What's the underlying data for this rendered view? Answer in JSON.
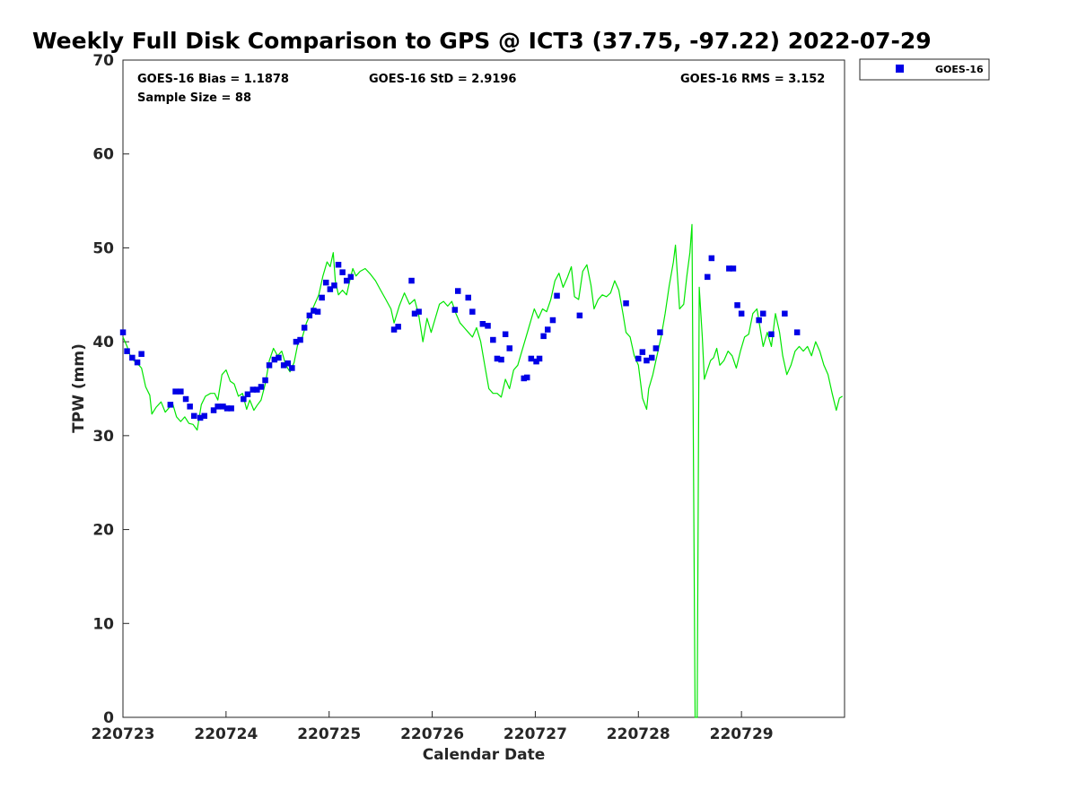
{
  "chart_data": {
    "type": "scatter",
    "title": "Weekly Full Disk Comparison to GPS @ ICT3 (37.75, -97.22) 2022-07-29",
    "xlabel": "Calendar Date",
    "ylabel": "TPW (mm)",
    "xlim": [
      0,
      7
    ],
    "ylim": [
      0,
      70
    ],
    "x_ticks": [
      {
        "value": 0,
        "label": "220723"
      },
      {
        "value": 1,
        "label": "220724"
      },
      {
        "value": 2,
        "label": "220725"
      },
      {
        "value": 3,
        "label": "220726"
      },
      {
        "value": 4,
        "label": "220727"
      },
      {
        "value": 5,
        "label": "220728"
      },
      {
        "value": 6,
        "label": "220729"
      }
    ],
    "y_ticks": [
      0,
      10,
      20,
      30,
      40,
      50,
      60,
      70
    ],
    "grid": false,
    "legend": {
      "position": "top-right",
      "entries": [
        "GOES-16"
      ]
    },
    "stats": {
      "bias": "GOES-16 Bias = 1.1878",
      "std": "GOES-16 StD = 2.9196",
      "rms": "GOES-16 RMS = 3.152",
      "sample": "Sample Size = 88"
    },
    "series": [
      {
        "name": "GOES-16",
        "kind": "scatter",
        "color": "#0000e6",
        "points": [
          [
            0.0,
            41.0
          ],
          [
            0.04,
            39.0
          ],
          [
            0.09,
            38.3
          ],
          [
            0.14,
            37.8
          ],
          [
            0.18,
            38.7
          ],
          [
            0.46,
            33.3
          ],
          [
            0.51,
            34.7
          ],
          [
            0.56,
            34.7
          ],
          [
            0.61,
            33.9
          ],
          [
            0.65,
            33.1
          ],
          [
            0.69,
            32.1
          ],
          [
            0.75,
            31.9
          ],
          [
            0.79,
            32.1
          ],
          [
            0.88,
            32.7
          ],
          [
            0.92,
            33.1
          ],
          [
            0.97,
            33.1
          ],
          [
            1.01,
            32.9
          ],
          [
            1.05,
            32.9
          ],
          [
            1.17,
            33.9
          ],
          [
            1.21,
            34.4
          ],
          [
            1.26,
            34.9
          ],
          [
            1.3,
            34.9
          ],
          [
            1.34,
            35.2
          ],
          [
            1.38,
            35.9
          ],
          [
            1.42,
            37.5
          ],
          [
            1.47,
            38.1
          ],
          [
            1.51,
            38.3
          ],
          [
            1.56,
            37.5
          ],
          [
            1.6,
            37.7
          ],
          [
            1.64,
            37.2
          ],
          [
            1.68,
            40.0
          ],
          [
            1.72,
            40.2
          ],
          [
            1.76,
            41.5
          ],
          [
            1.81,
            42.8
          ],
          [
            1.85,
            43.3
          ],
          [
            1.89,
            43.2
          ],
          [
            1.93,
            44.7
          ],
          [
            1.97,
            46.3
          ],
          [
            2.01,
            45.6
          ],
          [
            2.05,
            46.0
          ],
          [
            2.09,
            48.2
          ],
          [
            2.13,
            47.4
          ],
          [
            2.17,
            46.5
          ],
          [
            2.21,
            46.9
          ],
          [
            2.63,
            41.3
          ],
          [
            2.67,
            41.6
          ],
          [
            2.8,
            46.5
          ],
          [
            2.83,
            43.0
          ],
          [
            2.87,
            43.2
          ],
          [
            3.22,
            43.4
          ],
          [
            3.25,
            45.4
          ],
          [
            3.35,
            44.7
          ],
          [
            3.39,
            43.2
          ],
          [
            3.49,
            41.9
          ],
          [
            3.54,
            41.7
          ],
          [
            3.59,
            40.2
          ],
          [
            3.63,
            38.2
          ],
          [
            3.67,
            38.1
          ],
          [
            3.71,
            40.8
          ],
          [
            3.75,
            39.3
          ],
          [
            3.89,
            36.1
          ],
          [
            3.92,
            36.2
          ],
          [
            3.96,
            38.2
          ],
          [
            4.01,
            37.9
          ],
          [
            4.04,
            38.2
          ],
          [
            4.08,
            40.6
          ],
          [
            4.12,
            41.3
          ],
          [
            4.17,
            42.3
          ],
          [
            4.21,
            44.9
          ],
          [
            4.43,
            42.8
          ],
          [
            4.88,
            44.1
          ],
          [
            5.0,
            38.2
          ],
          [
            5.04,
            38.9
          ],
          [
            5.08,
            38.0
          ],
          [
            5.13,
            38.3
          ],
          [
            5.17,
            39.3
          ],
          [
            5.21,
            41.0
          ],
          [
            5.67,
            46.9
          ],
          [
            5.71,
            48.9
          ],
          [
            5.88,
            47.8
          ],
          [
            5.92,
            47.8
          ],
          [
            5.96,
            43.9
          ],
          [
            6.0,
            43.0
          ],
          [
            6.17,
            42.3
          ],
          [
            6.21,
            43.0
          ],
          [
            6.29,
            40.8
          ],
          [
            6.42,
            43.0
          ],
          [
            6.54,
            41.0
          ]
        ]
      },
      {
        "name": "",
        "kind": "line",
        "color": "#00e600",
        "points": [
          [
            0.0,
            40.5
          ],
          [
            0.04,
            39.5
          ],
          [
            0.08,
            38.2
          ],
          [
            0.13,
            37.8
          ],
          [
            0.18,
            37.2
          ],
          [
            0.22,
            35.2
          ],
          [
            0.26,
            34.3
          ],
          [
            0.28,
            32.3
          ],
          [
            0.32,
            33.0
          ],
          [
            0.37,
            33.6
          ],
          [
            0.41,
            32.5
          ],
          [
            0.45,
            33.0
          ],
          [
            0.48,
            33.5
          ],
          [
            0.52,
            32.0
          ],
          [
            0.56,
            31.5
          ],
          [
            0.6,
            32.0
          ],
          [
            0.64,
            31.3
          ],
          [
            0.68,
            31.2
          ],
          [
            0.72,
            30.6
          ],
          [
            0.76,
            33.3
          ],
          [
            0.8,
            34.2
          ],
          [
            0.85,
            34.5
          ],
          [
            0.89,
            34.5
          ],
          [
            0.92,
            33.8
          ],
          [
            0.96,
            36.5
          ],
          [
            1.0,
            37.0
          ],
          [
            1.04,
            35.8
          ],
          [
            1.08,
            35.5
          ],
          [
            1.12,
            34.2
          ],
          [
            1.16,
            34.5
          ],
          [
            1.2,
            32.8
          ],
          [
            1.23,
            33.8
          ],
          [
            1.27,
            32.7
          ],
          [
            1.3,
            33.2
          ],
          [
            1.34,
            33.8
          ],
          [
            1.38,
            35.5
          ],
          [
            1.42,
            38.0
          ],
          [
            1.46,
            39.3
          ],
          [
            1.5,
            38.5
          ],
          [
            1.54,
            39.0
          ],
          [
            1.58,
            37.5
          ],
          [
            1.62,
            36.8
          ],
          [
            1.66,
            37.8
          ],
          [
            1.7,
            40.0
          ],
          [
            1.74,
            40.5
          ],
          [
            1.78,
            42.0
          ],
          [
            1.82,
            43.0
          ],
          [
            1.86,
            44.0
          ],
          [
            1.9,
            45.0
          ],
          [
            1.94,
            47.0
          ],
          [
            1.98,
            48.5
          ],
          [
            2.01,
            48.0
          ],
          [
            2.04,
            49.5
          ],
          [
            2.06,
            46.5
          ],
          [
            2.09,
            45.0
          ],
          [
            2.13,
            45.5
          ],
          [
            2.17,
            45.0
          ],
          [
            2.2,
            46.5
          ],
          [
            2.23,
            47.8
          ],
          [
            2.26,
            47.0
          ],
          [
            2.3,
            47.5
          ],
          [
            2.35,
            47.8
          ],
          [
            2.4,
            47.2
          ],
          [
            2.45,
            46.5
          ],
          [
            2.5,
            45.5
          ],
          [
            2.55,
            44.5
          ],
          [
            2.6,
            43.5
          ],
          [
            2.63,
            42.0
          ],
          [
            2.68,
            43.8
          ],
          [
            2.73,
            45.2
          ],
          [
            2.78,
            44.0
          ],
          [
            2.83,
            44.5
          ],
          [
            2.87,
            42.8
          ],
          [
            2.91,
            40.0
          ],
          [
            2.95,
            42.5
          ],
          [
            2.99,
            41.0
          ],
          [
            3.03,
            42.5
          ],
          [
            3.07,
            44.0
          ],
          [
            3.11,
            44.3
          ],
          [
            3.15,
            43.8
          ],
          [
            3.19,
            44.3
          ],
          [
            3.23,
            43.0
          ],
          [
            3.27,
            42.0
          ],
          [
            3.31,
            41.5
          ],
          [
            3.35,
            41.0
          ],
          [
            3.39,
            40.5
          ],
          [
            3.43,
            41.5
          ],
          [
            3.47,
            40.0
          ],
          [
            3.51,
            37.5
          ],
          [
            3.55,
            35.0
          ],
          [
            3.59,
            34.5
          ],
          [
            3.63,
            34.5
          ],
          [
            3.67,
            34.1
          ],
          [
            3.71,
            36.0
          ],
          [
            3.75,
            35.0
          ],
          [
            3.79,
            37.0
          ],
          [
            3.83,
            37.5
          ],
          [
            3.87,
            39.0
          ],
          [
            3.91,
            40.5
          ],
          [
            3.95,
            42.0
          ],
          [
            3.99,
            43.5
          ],
          [
            4.03,
            42.5
          ],
          [
            4.07,
            43.5
          ],
          [
            4.11,
            43.2
          ],
          [
            4.15,
            44.5
          ],
          [
            4.19,
            46.5
          ],
          [
            4.23,
            47.3
          ],
          [
            4.27,
            45.8
          ],
          [
            4.31,
            46.8
          ],
          [
            4.35,
            48.0
          ],
          [
            4.38,
            44.8
          ],
          [
            4.42,
            44.5
          ],
          [
            4.46,
            47.5
          ],
          [
            4.5,
            48.2
          ],
          [
            4.54,
            46.0
          ],
          [
            4.57,
            43.5
          ],
          [
            4.61,
            44.5
          ],
          [
            4.65,
            45.0
          ],
          [
            4.69,
            44.8
          ],
          [
            4.73,
            45.2
          ],
          [
            4.77,
            46.5
          ],
          [
            4.81,
            45.5
          ],
          [
            4.85,
            43.0
          ],
          [
            4.88,
            41.0
          ],
          [
            4.92,
            40.5
          ],
          [
            4.96,
            38.5
          ],
          [
            5.0,
            37.5
          ],
          [
            5.04,
            34.0
          ],
          [
            5.08,
            32.8
          ],
          [
            5.1,
            35.0
          ],
          [
            5.14,
            36.5
          ],
          [
            5.18,
            38.5
          ],
          [
            5.22,
            40.5
          ],
          [
            5.26,
            43.0
          ],
          [
            5.3,
            46.0
          ],
          [
            5.34,
            48.5
          ],
          [
            5.36,
            50.3
          ],
          [
            5.4,
            43.5
          ],
          [
            5.44,
            44.0
          ],
          [
            5.47,
            47.0
          ],
          [
            5.5,
            49.5
          ],
          [
            5.52,
            52.5
          ],
          [
            5.55,
            0
          ],
          [
            5.57,
            0
          ],
          [
            5.59,
            45.8
          ],
          [
            5.62,
            40.5
          ],
          [
            5.64,
            36.0
          ],
          [
            5.67,
            37.0
          ],
          [
            5.7,
            38.0
          ],
          [
            5.73,
            38.3
          ],
          [
            5.76,
            39.3
          ],
          [
            5.79,
            37.5
          ],
          [
            5.83,
            38.0
          ],
          [
            5.87,
            39.0
          ],
          [
            5.91,
            38.5
          ],
          [
            5.95,
            37.2
          ],
          [
            5.99,
            39.0
          ],
          [
            6.03,
            40.5
          ],
          [
            6.07,
            40.8
          ],
          [
            6.11,
            43.0
          ],
          [
            6.15,
            43.5
          ],
          [
            6.18,
            41.5
          ],
          [
            6.21,
            39.5
          ],
          [
            6.25,
            41.0
          ],
          [
            6.29,
            39.5
          ],
          [
            6.33,
            43.0
          ],
          [
            6.37,
            41.0
          ],
          [
            6.4,
            38.5
          ],
          [
            6.44,
            36.5
          ],
          [
            6.48,
            37.5
          ],
          [
            6.52,
            39.0
          ],
          [
            6.56,
            39.5
          ],
          [
            6.6,
            39.0
          ],
          [
            6.64,
            39.5
          ],
          [
            6.68,
            38.5
          ],
          [
            6.72,
            40.0
          ],
          [
            6.76,
            39.0
          ],
          [
            6.8,
            37.5
          ],
          [
            6.84,
            36.5
          ],
          [
            6.88,
            34.5
          ],
          [
            6.92,
            32.7
          ],
          [
            6.95,
            34.0
          ],
          [
            6.98,
            34.2
          ]
        ]
      }
    ]
  }
}
